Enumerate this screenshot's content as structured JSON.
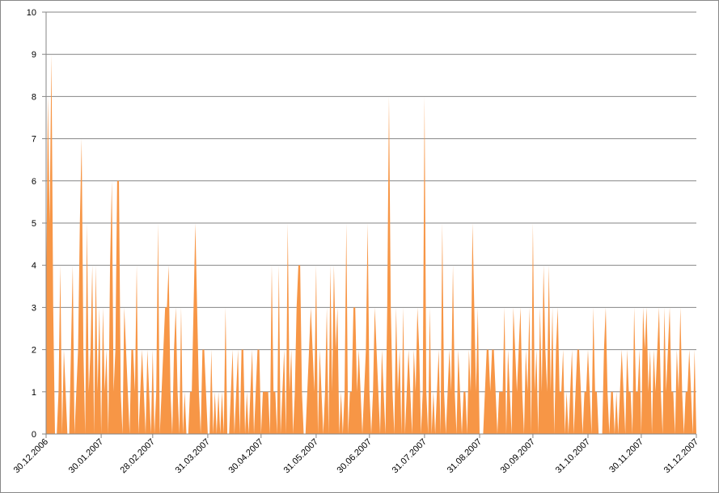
{
  "chart_data": {
    "type": "area",
    "x": [
      "30.12.2006",
      "31.12.2006",
      "01.01.2007",
      "02.01.2007",
      "03.01.2007",
      "04.01.2007",
      "05.01.2007",
      "06.01.2007",
      "07.01.2007",
      "08.01.2007",
      "09.01.2007",
      "10.01.2007",
      "11.01.2007",
      "12.01.2007",
      "13.01.2007",
      "14.01.2007",
      "15.01.2007",
      "16.01.2007",
      "17.01.2007",
      "18.01.2007",
      "19.01.2007",
      "20.01.2007",
      "21.01.2007",
      "22.01.2007",
      "23.01.2007",
      "24.01.2007",
      "25.01.2007",
      "26.01.2007",
      "27.01.2007",
      "28.01.2007",
      "29.01.2007",
      "30.01.2007",
      "31.01.2007",
      "01.02.2007",
      "02.02.2007",
      "03.02.2007",
      "04.02.2007",
      "05.02.2007",
      "06.02.2007",
      "07.02.2007",
      "08.02.2007",
      "09.02.2007",
      "10.02.2007",
      "11.02.2007",
      "12.02.2007",
      "13.02.2007",
      "14.02.2007",
      "15.02.2007",
      "16.02.2007",
      "17.02.2007",
      "18.02.2007",
      "19.02.2007",
      "20.02.2007",
      "21.02.2007",
      "22.02.2007",
      "23.02.2007",
      "24.02.2007",
      "25.02.2007",
      "26.02.2007",
      "27.02.2007",
      "28.02.2007",
      "01.03.2007",
      "02.03.2007",
      "03.03.2007",
      "04.03.2007",
      "05.03.2007",
      "06.03.2007",
      "07.03.2007",
      "08.03.2007",
      "09.03.2007",
      "10.03.2007",
      "11.03.2007",
      "12.03.2007",
      "13.03.2007",
      "14.03.2007",
      "15.03.2007",
      "16.03.2007",
      "17.03.2007",
      "18.03.2007",
      "19.03.2007",
      "20.03.2007",
      "21.03.2007",
      "22.03.2007",
      "23.03.2007",
      "24.03.2007",
      "25.03.2007",
      "26.03.2007",
      "27.03.2007",
      "28.03.2007",
      "29.03.2007",
      "30.03.2007",
      "31.03.2007",
      "01.04.2007",
      "02.04.2007",
      "03.04.2007",
      "04.04.2007",
      "05.04.2007",
      "06.04.2007",
      "07.04.2007",
      "08.04.2007",
      "09.04.2007",
      "10.04.2007",
      "11.04.2007",
      "12.04.2007",
      "13.04.2007",
      "14.04.2007",
      "15.04.2007",
      "16.04.2007",
      "17.04.2007",
      "18.04.2007",
      "19.04.2007",
      "20.04.2007",
      "21.04.2007",
      "22.04.2007",
      "23.04.2007",
      "24.04.2007",
      "25.04.2007",
      "26.04.2007",
      "27.04.2007",
      "28.04.2007",
      "29.04.2007",
      "30.04.2007",
      "01.05.2007",
      "02.05.2007",
      "03.05.2007",
      "04.05.2007",
      "05.05.2007",
      "06.05.2007",
      "07.05.2007",
      "08.05.2007",
      "09.05.2007",
      "10.05.2007",
      "11.05.2007",
      "12.05.2007",
      "13.05.2007",
      "14.05.2007",
      "15.05.2007",
      "16.05.2007",
      "17.05.2007",
      "18.05.2007",
      "19.05.2007",
      "20.05.2007",
      "21.05.2007",
      "22.05.2007",
      "23.05.2007",
      "24.05.2007",
      "25.05.2007",
      "26.05.2007",
      "27.05.2007",
      "28.05.2007",
      "29.05.2007",
      "30.05.2007",
      "31.05.2007",
      "01.06.2007",
      "02.06.2007",
      "03.06.2007",
      "04.06.2007",
      "05.06.2007",
      "06.06.2007",
      "07.06.2007",
      "08.06.2007",
      "09.06.2007",
      "10.06.2007",
      "11.06.2007",
      "12.06.2007",
      "13.06.2007",
      "14.06.2007",
      "15.06.2007",
      "16.06.2007",
      "17.06.2007",
      "18.06.2007",
      "19.06.2007",
      "20.06.2007",
      "21.06.2007",
      "22.06.2007",
      "23.06.2007",
      "24.06.2007",
      "25.06.2007",
      "26.06.2007",
      "27.06.2007",
      "28.06.2007",
      "29.06.2007",
      "30.06.2007",
      "01.07.2007",
      "02.07.2007",
      "03.07.2007",
      "04.07.2007",
      "05.07.2007",
      "06.07.2007",
      "07.07.2007",
      "08.07.2007",
      "09.07.2007",
      "10.07.2007",
      "11.07.2007",
      "12.07.2007",
      "13.07.2007",
      "14.07.2007",
      "15.07.2007",
      "16.07.2007",
      "17.07.2007",
      "18.07.2007",
      "19.07.2007",
      "20.07.2007",
      "21.07.2007",
      "22.07.2007",
      "23.07.2007",
      "24.07.2007",
      "25.07.2007",
      "26.07.2007",
      "27.07.2007",
      "28.07.2007",
      "29.07.2007",
      "30.07.2007",
      "31.07.2007",
      "01.08.2007",
      "02.08.2007",
      "03.08.2007",
      "04.08.2007",
      "05.08.2007",
      "06.08.2007",
      "07.08.2007",
      "08.08.2007",
      "09.08.2007",
      "10.08.2007",
      "11.08.2007",
      "12.08.2007",
      "13.08.2007",
      "14.08.2007",
      "15.08.2007",
      "16.08.2007",
      "17.08.2007",
      "18.08.2007",
      "19.08.2007",
      "20.08.2007",
      "21.08.2007",
      "22.08.2007",
      "23.08.2007",
      "24.08.2007",
      "25.08.2007",
      "26.08.2007",
      "27.08.2007",
      "28.08.2007",
      "29.08.2007",
      "30.08.2007",
      "31.08.2007",
      "01.09.2007",
      "02.09.2007",
      "03.09.2007",
      "04.09.2007",
      "05.09.2007",
      "06.09.2007",
      "07.09.2007",
      "08.09.2007",
      "09.09.2007",
      "10.09.2007",
      "11.09.2007",
      "12.09.2007",
      "13.09.2007",
      "14.09.2007",
      "15.09.2007",
      "16.09.2007",
      "17.09.2007",
      "18.09.2007",
      "19.09.2007",
      "20.09.2007",
      "21.09.2007",
      "22.09.2007",
      "23.09.2007",
      "24.09.2007",
      "25.09.2007",
      "26.09.2007",
      "27.09.2007",
      "28.09.2007",
      "29.09.2007",
      "30.09.2007",
      "01.10.2007",
      "02.10.2007",
      "03.10.2007",
      "04.10.2007",
      "05.10.2007",
      "06.10.2007",
      "07.10.2007",
      "08.10.2007",
      "09.10.2007",
      "10.10.2007",
      "11.10.2007",
      "12.10.2007",
      "13.10.2007",
      "14.10.2007",
      "15.10.2007",
      "16.10.2007",
      "17.10.2007",
      "18.10.2007",
      "19.10.2007",
      "20.10.2007",
      "21.10.2007",
      "22.10.2007",
      "23.10.2007",
      "24.10.2007",
      "25.10.2007",
      "26.10.2007",
      "27.10.2007",
      "28.10.2007",
      "29.10.2007",
      "30.10.2007",
      "31.10.2007",
      "01.11.2007",
      "02.11.2007",
      "03.11.2007",
      "04.11.2007",
      "05.11.2007",
      "06.11.2007",
      "07.11.2007",
      "08.11.2007",
      "09.11.2007",
      "10.11.2007",
      "11.11.2007",
      "12.11.2007",
      "13.11.2007",
      "14.11.2007",
      "15.11.2007",
      "16.11.2007",
      "17.11.2007",
      "18.11.2007",
      "19.11.2007",
      "20.11.2007",
      "21.11.2007",
      "22.11.2007",
      "23.11.2007",
      "24.11.2007",
      "25.11.2007",
      "26.11.2007",
      "27.11.2007",
      "28.11.2007",
      "29.11.2007",
      "30.11.2007",
      "01.12.2007",
      "02.12.2007",
      "03.12.2007",
      "04.12.2007",
      "05.12.2007",
      "06.12.2007",
      "07.12.2007",
      "08.12.2007",
      "09.12.2007",
      "10.12.2007",
      "11.12.2007",
      "12.12.2007",
      "13.12.2007",
      "14.12.2007",
      "15.12.2007",
      "16.12.2007",
      "17.12.2007",
      "18.12.2007",
      "19.12.2007",
      "20.12.2007",
      "21.12.2007",
      "22.12.2007",
      "23.12.2007",
      "24.12.2007",
      "25.12.2007",
      "26.12.2007",
      "27.12.2007",
      "28.12.2007",
      "29.12.2007",
      "30.12.2007",
      "31.12.2007"
    ],
    "values": [
      3,
      8,
      5,
      9,
      3,
      0,
      0,
      1,
      4,
      0,
      2,
      1,
      0,
      0,
      2,
      4,
      0,
      1,
      2,
      5,
      7,
      2,
      0,
      5,
      1,
      2,
      4,
      0,
      4,
      1,
      3,
      0,
      3,
      1,
      2,
      0,
      4,
      6,
      1,
      2,
      6,
      6,
      1,
      0,
      3,
      2,
      1,
      0,
      2,
      2,
      1,
      4,
      0,
      1,
      2,
      1,
      0,
      2,
      1,
      0,
      2,
      0,
      1,
      5,
      0,
      1,
      2,
      3,
      3,
      4,
      1,
      0,
      2,
      3,
      1,
      0,
      3,
      0,
      1,
      0,
      0,
      1,
      1,
      3,
      5,
      3,
      1,
      0,
      2,
      2,
      1,
      0,
      0,
      2,
      0,
      1,
      0,
      1,
      0,
      1,
      0,
      3,
      0,
      0,
      1,
      2,
      0,
      1,
      2,
      0,
      2,
      2,
      0,
      1,
      0,
      1,
      2,
      0,
      1,
      2,
      2,
      0,
      1,
      1,
      1,
      1,
      0,
      4,
      1,
      1,
      0,
      4,
      0,
      1,
      2,
      0,
      5,
      1,
      2,
      0,
      1,
      3,
      4,
      4,
      1,
      0,
      0,
      1,
      2,
      3,
      2,
      1,
      4,
      0,
      2,
      1,
      0,
      1,
      3,
      0,
      4,
      1,
      4,
      2,
      3,
      0,
      1,
      0,
      1,
      5,
      0,
      1,
      1,
      3,
      3,
      1,
      2,
      1,
      0,
      1,
      2,
      5,
      1,
      0,
      1,
      3,
      2,
      1,
      0,
      2,
      1,
      0,
      3,
      8,
      3,
      1,
      0,
      3,
      1,
      2,
      0,
      3,
      0,
      1,
      2,
      1,
      0,
      2,
      1,
      3,
      2,
      0,
      1,
      8,
      1,
      0,
      3,
      0,
      1,
      0,
      1,
      2,
      0,
      5,
      1,
      0,
      1,
      2,
      1,
      4,
      1,
      0,
      2,
      1,
      0,
      1,
      1,
      0,
      2,
      1,
      5,
      3,
      1,
      3,
      0,
      0,
      0,
      1,
      2,
      2,
      1,
      2,
      2,
      1,
      0,
      1,
      1,
      1,
      3,
      0,
      2,
      1,
      0,
      3,
      2,
      1,
      2,
      3,
      1,
      0,
      2,
      1,
      3,
      0,
      5,
      1,
      2,
      0,
      3,
      1,
      4,
      2,
      1,
      4,
      1,
      3,
      0,
      2,
      3,
      1,
      1,
      2,
      0,
      1,
      0,
      1,
      2,
      0,
      1,
      2,
      2,
      1,
      0,
      1,
      1,
      2,
      1,
      0,
      3,
      1,
      1,
      0,
      0,
      0,
      2,
      3,
      1,
      0,
      1,
      1,
      0,
      1,
      0,
      1,
      2,
      1,
      0,
      2,
      1,
      1,
      0,
      3,
      1,
      1,
      2,
      0,
      3,
      2,
      3,
      1,
      2,
      0,
      2,
      1,
      2,
      3,
      1,
      0,
      3,
      1,
      2,
      3,
      1,
      1,
      0,
      2,
      1,
      3,
      1,
      0,
      1,
      1,
      2,
      1,
      0,
      2,
      0
    ],
    "color": "#f79646",
    "xticks": [
      "30.12.2006",
      "30.01.2007",
      "28.02.2007",
      "31.03.2007",
      "30.04.2007",
      "31.05.2007",
      "30.06.2007",
      "31.07.2007",
      "31.08.2007",
      "30.09.2007",
      "31.10.2007",
      "30.11.2007",
      "31.12.2007"
    ],
    "ylim": [
      0,
      10
    ],
    "yticks": [
      0,
      1,
      2,
      3,
      4,
      5,
      6,
      7,
      8,
      9,
      10
    ],
    "grid": true
  }
}
